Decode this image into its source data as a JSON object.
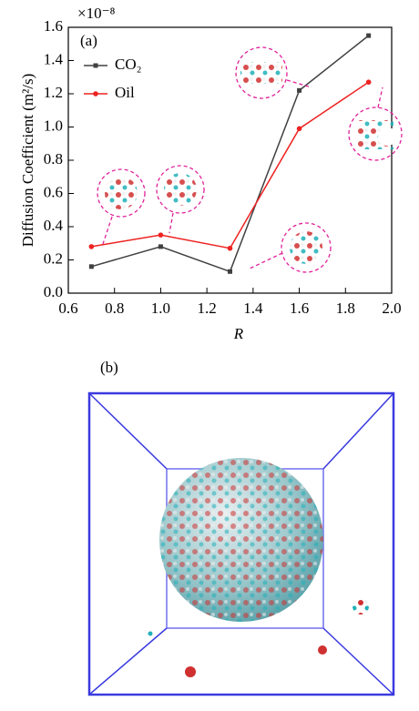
{
  "chart_data": {
    "type": "line",
    "panel_label": "(a)",
    "multiplier": "×10⁻⁸",
    "x_label": "R",
    "y_label": "Diffusion Coefficient (m²/s)",
    "x": [
      0.7,
      1.0,
      1.3,
      1.6,
      1.9
    ],
    "series": [
      {
        "name": "CO₂",
        "color": "#404040",
        "marker": "square",
        "values": [
          0.16,
          0.28,
          0.13,
          1.22,
          1.55
        ]
      },
      {
        "name": "Oil",
        "color": "#ee2222",
        "marker": "circle",
        "values": [
          0.28,
          0.35,
          0.27,
          0.99,
          1.27
        ]
      }
    ],
    "xlim": [
      0.6,
      2.0
    ],
    "xticks": [
      0.6,
      0.8,
      {
        "value": 1.0,
        "label": "1.0"
      },
      1.2,
      1.4,
      1.6,
      1.8,
      {
        "value": 2.0,
        "label": "2.0"
      }
    ],
    "ylim": [
      0.0,
      1.6
    ],
    "yticks": [
      {
        "value": 0.0,
        "label": "0.0"
      },
      0.2,
      0.4,
      0.6,
      0.8,
      {
        "value": 1.0,
        "label": "1.0"
      },
      1.2,
      1.4,
      1.6
    ],
    "grid": false
  },
  "panel_b_label": "(b)"
}
